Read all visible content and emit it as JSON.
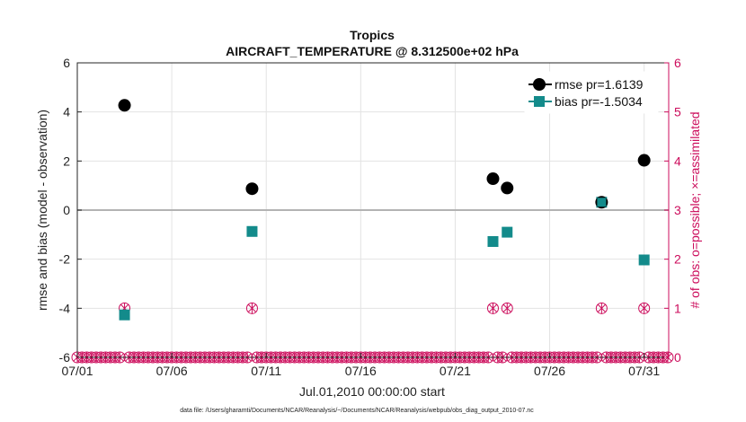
{
  "chart_data": {
    "type": "scatter",
    "title": "Tropics",
    "subtitle": "AIRCRAFT_TEMPERATURE @ 8.312500e+02 hPa",
    "xlabel": "Jul.01,2010 00:00:00 start",
    "ylabel_left": "rmse and bias (model - observation)",
    "ylabel_right": "# of obs: o=possible; ×=assimilated",
    "xlim": [
      1.0,
      32.3
    ],
    "ylim_left": [
      -6,
      6
    ],
    "ylim_right": [
      0,
      6
    ],
    "x_ticks": [
      1,
      6,
      11,
      16,
      21,
      26,
      31
    ],
    "x_tick_labels": [
      "07/01",
      "07/06",
      "07/11",
      "07/16",
      "07/21",
      "07/26",
      "07/31"
    ],
    "y_ticks_left": [
      -6,
      -4,
      -2,
      0,
      2,
      4,
      6
    ],
    "y_ticks_right": [
      0,
      1,
      2,
      3,
      4,
      5,
      6
    ],
    "legend_position": "top-right",
    "series": [
      {
        "name": "rmse",
        "legend_label": "rmse pr=1.6139",
        "color": "#000000",
        "marker": "circle",
        "x": [
          3.5,
          10.25,
          23.0,
          23.75,
          28.75,
          31.0
        ],
        "y": [
          4.27,
          0.87,
          1.28,
          0.9,
          0.32,
          2.03
        ]
      },
      {
        "name": "bias",
        "legend_label": "bias pr=-1.5034",
        "color": "#138b8b",
        "marker": "square",
        "x": [
          3.5,
          10.25,
          23.0,
          23.75,
          28.75,
          31.0
        ],
        "y": [
          -4.27,
          -0.87,
          -1.28,
          -0.9,
          0.32,
          -2.03
        ]
      }
    ],
    "obs_counts": {
      "color": "#cc0d5c",
      "x": [
        3.5,
        10.25,
        23.0,
        23.75,
        28.75,
        31.0
      ],
      "possible": [
        1,
        1,
        1,
        1,
        1,
        1
      ],
      "assimilated": [
        1,
        1,
        1,
        1,
        1,
        1
      ],
      "zero_step": 0.25
    }
  },
  "footer": {
    "data_file": "data file: /Users/gharamti/Documents/NCAR/Reanalysis/~/Documents/NCAR/Reanalysis/webpub/obs_diag_output_2010-07.nc"
  }
}
